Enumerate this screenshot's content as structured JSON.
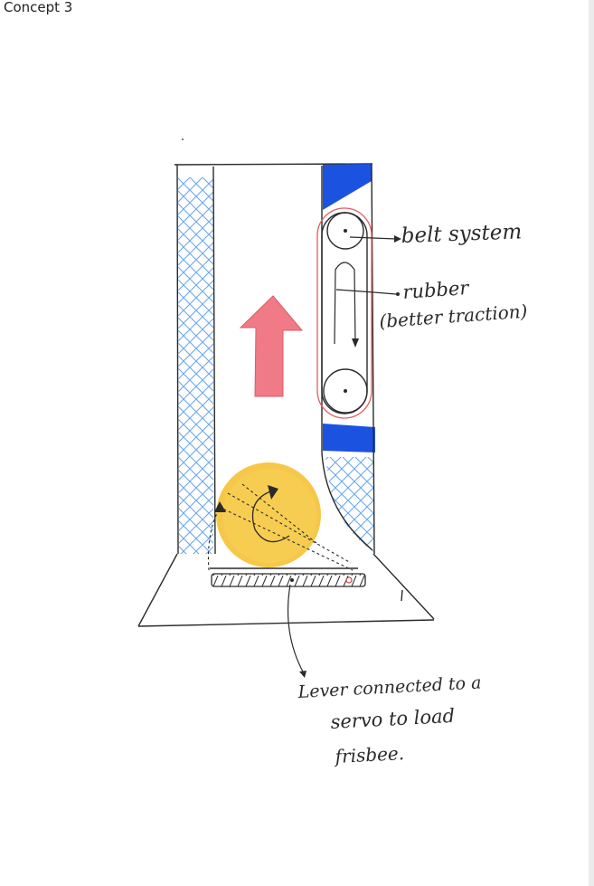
{
  "page": {
    "title": "Concept 3"
  },
  "colors": {
    "ink": "#2a2a2a",
    "hatch": "#6aa8f0",
    "blue_fill": "#1c52e0",
    "arrow_red": "#f07a86",
    "belt_red": "#e65a5a",
    "disc_yellow": "#f5c33a"
  },
  "annotations": {
    "belt_system": "belt system",
    "rubber_line1": "rubber",
    "rubber_line2": "(better traction)",
    "lever_line1": "Lever connected to a",
    "lever_line2": "servo to load",
    "lever_line3": "frisbee."
  },
  "icons": [
    "up-arrow-icon",
    "rotation-arrow-icon"
  ]
}
